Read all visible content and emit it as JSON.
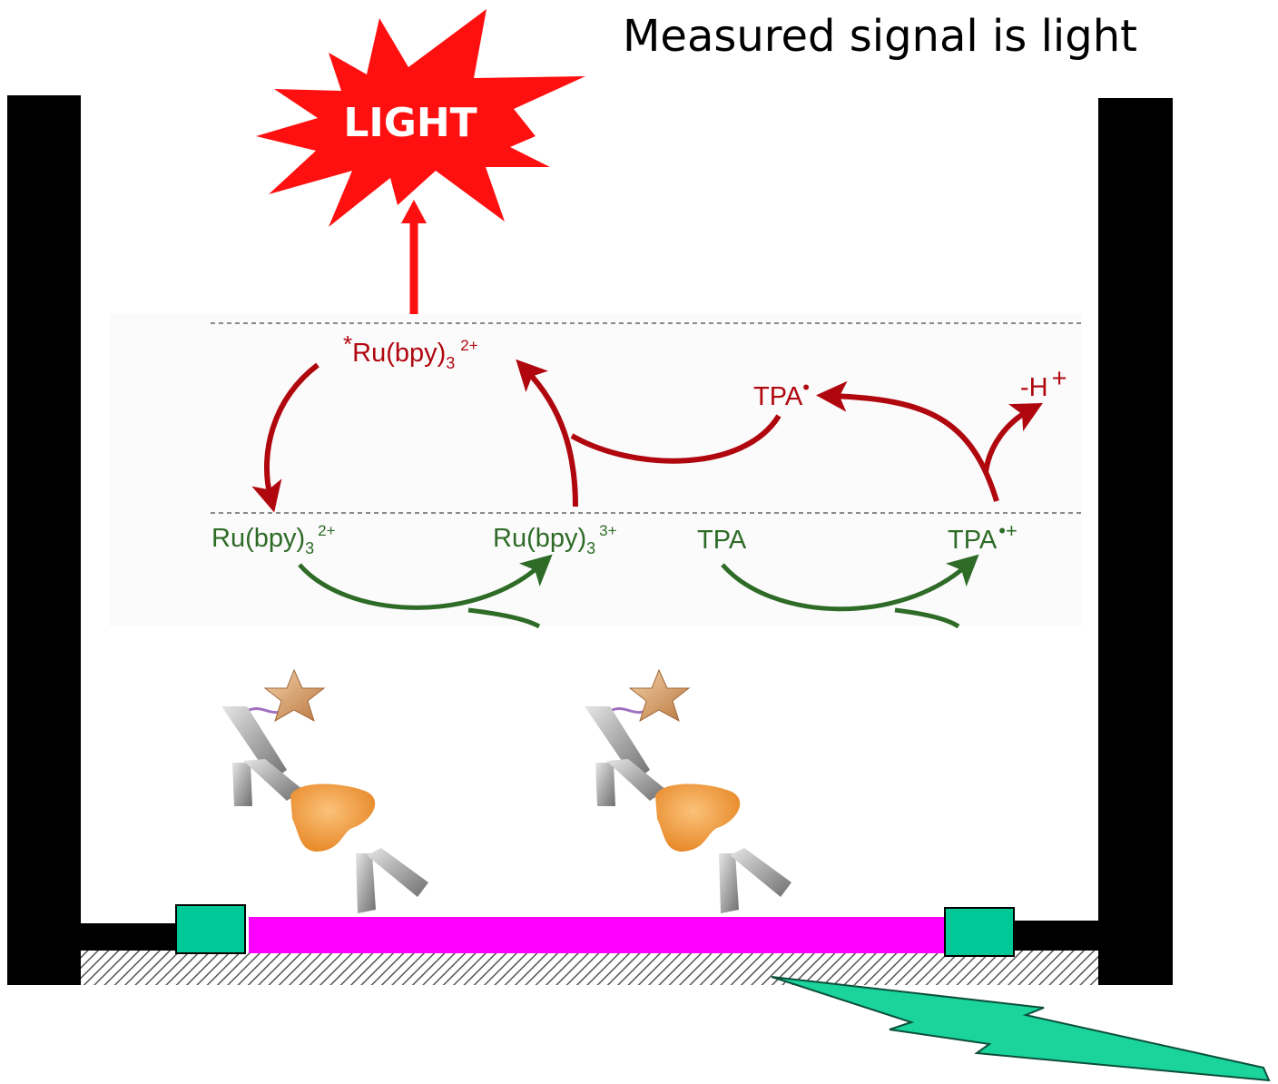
{
  "caption": "Measured signal is light",
  "burst_label": "LIGHT",
  "colors": {
    "frame": "#000000",
    "burst": "#ff1010",
    "red_arrow": "#b0070f",
    "green_arrow": "#2e6b27",
    "electrode": "#ff00ff",
    "contact": "#00c896",
    "bolt": "#1ad49b",
    "antigen": "#f29b3a",
    "antibody": "#a8a8a8",
    "label_star": "#d99a66",
    "linker": "#a070c0"
  },
  "excited_state": {
    "star": "*",
    "base": "Ru(bpy)",
    "sub": "3",
    "sup": "2+"
  },
  "red_labels": {
    "tpa_radical": "TPA",
    "tpa_radical_dot": "•",
    "h_loss": "-H",
    "h_loss_sup": "+"
  },
  "green_labels": {
    "ru2": {
      "base": "Ru(bpy)",
      "sub": "3",
      "sup": "2+"
    },
    "ru3": {
      "base": "Ru(bpy)",
      "sub": "3",
      "sup": "3+"
    },
    "tpa": "TPA",
    "tpa_cation": {
      "base": "TPA",
      "sup": "•+"
    }
  },
  "icons": {
    "burst": "starburst-icon",
    "bolt": "lightning-bolt-icon",
    "antibody": "antibody-icon",
    "antigen": "antigen-icon",
    "ruthenium_label": "star-label-icon"
  }
}
